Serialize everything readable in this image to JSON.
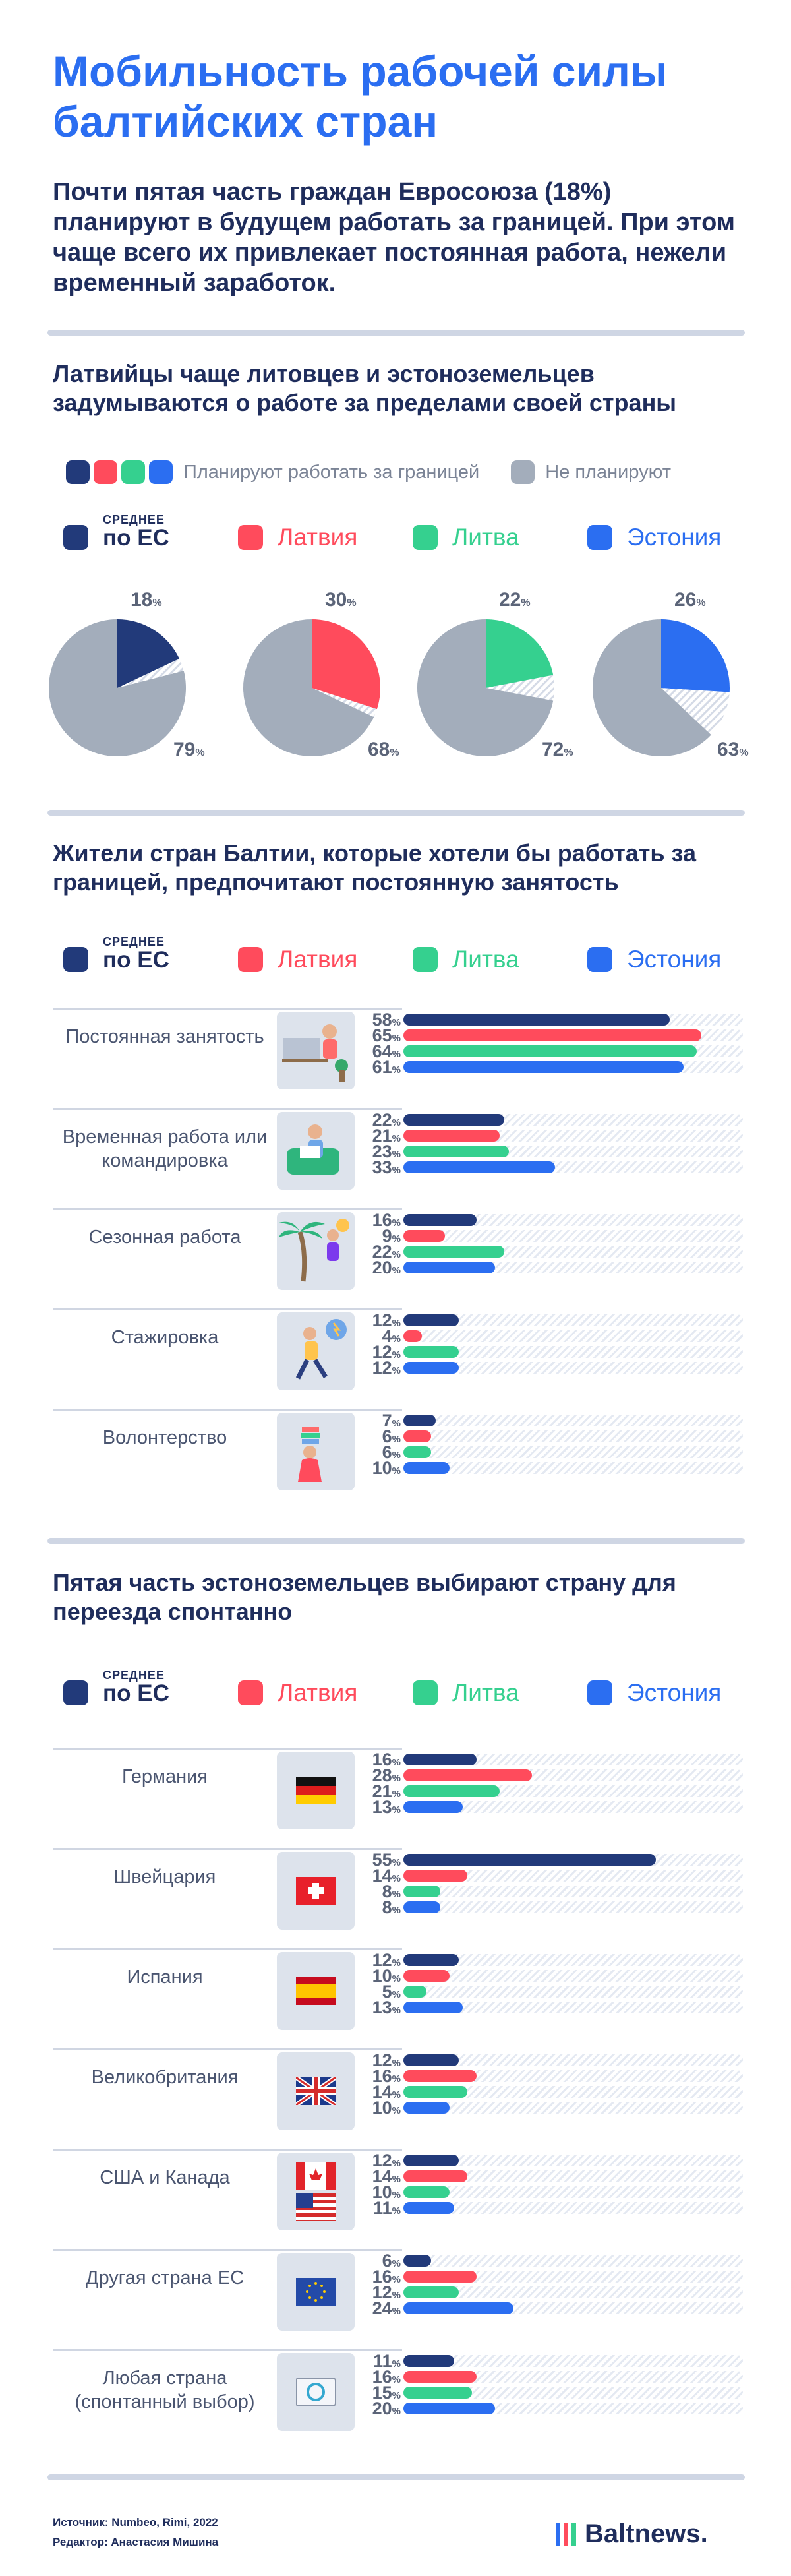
{
  "title": "Мобильность рабочей силы балтийских стран",
  "intro": "Почти пятая часть граждан Евросоюза (18%) планируют в будущем работать за границей. При этом чаще всего их привлекает постоянная работа, нежели временный заработок.",
  "colors": {
    "eu": "#223a7a",
    "latvia": "#ff4b5c",
    "lithuania": "#35d08f",
    "estonia": "#2b6ef1",
    "grey": "#a3adbb",
    "hatch": "#d4dae6"
  },
  "categories": {
    "eu_small": "СРЕДНЕЕ",
    "eu": "по ЕС",
    "latvia": "Латвия",
    "lithuania": "Литва",
    "estonia": "Эстония"
  },
  "pct_unit": "%",
  "section1": {
    "title": "Латвийцы чаще литовцев и эстоноземельцев задумываются о работе за пределами своей страны",
    "legend_plan": "Планируют работать за границей",
    "legend_not": "Не планируют"
  },
  "section2": {
    "title": "Жители стран Балтии, которые хотели бы работать за границей, предпочитают постоянную занятость"
  },
  "section3": {
    "title": "Пятая часть эстоноземельцев выбирают страну для переезда спонтанно"
  },
  "footer": {
    "source": "Источник: Numbeo, Rimi, 2022",
    "editor": "Редактор: Анастасия Мишина",
    "logo": "Baltnews."
  },
  "chart_data": [
    {
      "type": "pie",
      "title": "Латвийцы чаще литовцев и эстоноземельцев задумываются о работе за пределами своей страны",
      "unit": "%",
      "series": [
        {
          "name": "по ЕС",
          "plan": 18,
          "not": 79
        },
        {
          "name": "Латвия",
          "plan": 30,
          "not": 68
        },
        {
          "name": "Литва",
          "plan": 22,
          "not": 72
        },
        {
          "name": "Эстония",
          "plan": 26,
          "not": 63
        }
      ]
    },
    {
      "type": "bar",
      "title": "Жители стран Балтии, которые хотели бы работать за границей, предпочитают постоянную занятость",
      "unit": "%",
      "categories": [
        "Постоянная занятость",
        "Временная работа или командировка",
        "Сезонная работа",
        "Стажировка",
        "Волонтерство"
      ],
      "series": [
        {
          "name": "по ЕС",
          "values": [
            58,
            22,
            16,
            12,
            7
          ]
        },
        {
          "name": "Латвия",
          "values": [
            65,
            21,
            9,
            4,
            6
          ]
        },
        {
          "name": "Литва",
          "values": [
            64,
            23,
            22,
            12,
            6
          ]
        },
        {
          "name": "Эстония",
          "values": [
            61,
            33,
            20,
            12,
            10
          ]
        }
      ],
      "xlim": [
        0,
        74
      ]
    },
    {
      "type": "bar",
      "title": "Пятая часть эстоноземельцев выбирают страну для переезда спонтанно",
      "unit": "%",
      "categories": [
        "Германия",
        "Швейцария",
        "Испания",
        "Великобритания",
        "США и Канада",
        "Другая страна ЕС",
        "Любая страна (спонтанный выбор)"
      ],
      "series": [
        {
          "name": "по ЕС",
          "values": [
            16,
            55,
            12,
            12,
            12,
            6,
            11
          ]
        },
        {
          "name": "Латвия",
          "values": [
            28,
            14,
            10,
            16,
            14,
            16,
            16
          ]
        },
        {
          "name": "Литва",
          "values": [
            21,
            8,
            5,
            14,
            10,
            12,
            15
          ]
        },
        {
          "name": "Эстония",
          "values": [
            13,
            8,
            13,
            10,
            11,
            24,
            20
          ]
        }
      ],
      "xlim": [
        0,
        74
      ]
    }
  ]
}
